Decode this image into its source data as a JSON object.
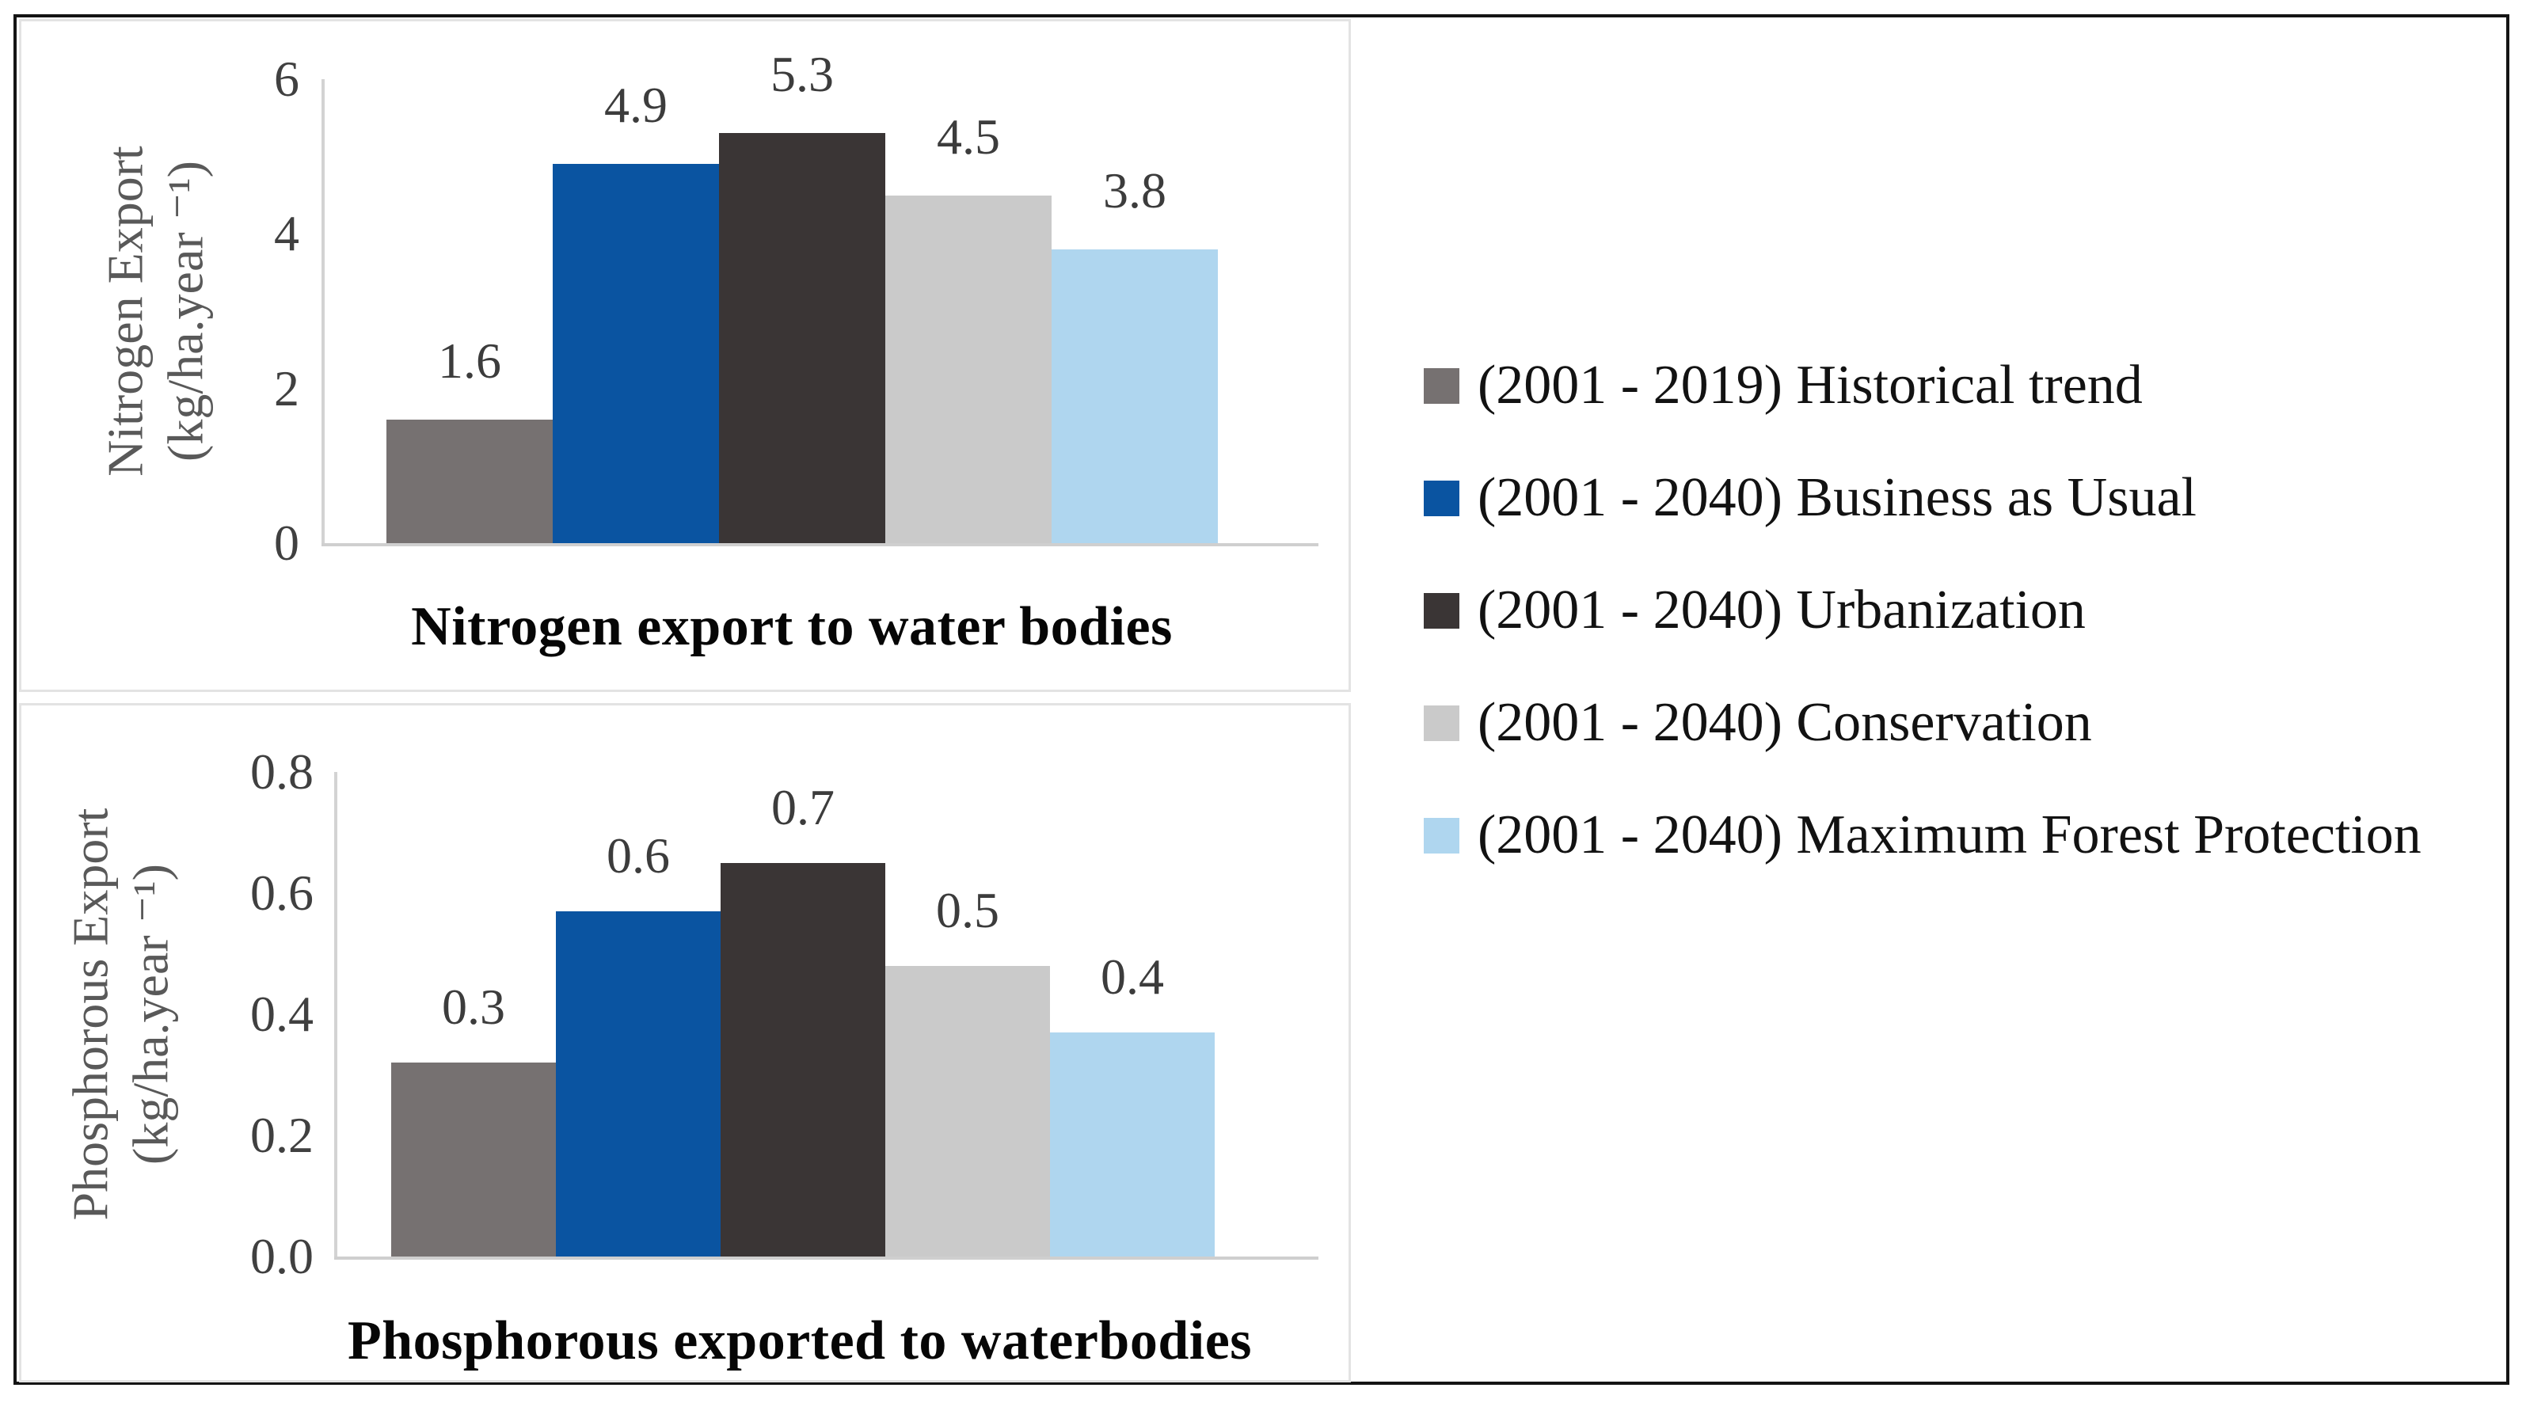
{
  "figure": {
    "background": "#ffffff",
    "border_color": "#141414",
    "panel_border_color": "#e3e3e3",
    "axis_line_color": "#d3d3d3",
    "tick_label_color": "#404040",
    "data_label_color": "#3c3c3c",
    "axis_title_color": "#595959",
    "chart_title_color": "#060606"
  },
  "legend": {
    "position": "right",
    "items": [
      {
        "label": "(2001 - 2019) Historical trend",
        "color": "#767171",
        "swatch": "square"
      },
      {
        "label": "(2001 - 2040) Business as Usual",
        "color": "#0a54a1",
        "swatch": "square"
      },
      {
        "label": "(2001 - 2040) Urbanization",
        "color": "#3a3535",
        "swatch": "square"
      },
      {
        "label": "(2001 - 2040) Conservation",
        "color": "#cacaca",
        "swatch": "square"
      },
      {
        "label": "(2001 - 2040) Maximum Forest Protection",
        "color": "#afd6ef",
        "swatch": "square"
      }
    ]
  },
  "chart_data": [
    {
      "type": "bar",
      "title": "Nitrogen export to water bodies",
      "title_position": "bottom",
      "ylabel_line1": "Nitrogen Export",
      "ylabel_line2": "(kg/ha.year ⁻¹)",
      "xlabel": "",
      "categories": [
        "(2001 - 2019) Historical trend",
        "(2001 - 2040) Business as Usual",
        "(2001 - 2040) Urbanization",
        "(2001 - 2040) Conservation",
        "(2001 - 2040) Maximum Forest Protection"
      ],
      "values": [
        1.6,
        4.9,
        5.3,
        4.5,
        3.8
      ],
      "bar_labels": [
        "1.6",
        "4.9",
        "5.3",
        "4.5",
        "3.8"
      ],
      "plotted_values": [
        1.6,
        4.9,
        5.3,
        4.5,
        3.8
      ],
      "colors": [
        "#767171",
        "#0a54a1",
        "#3a3535",
        "#cacaca",
        "#afd6ef"
      ],
      "ylim": [
        0,
        6
      ],
      "yticks": [
        {
          "value": 0,
          "label": "0"
        },
        {
          "value": 2,
          "label": "2"
        },
        {
          "value": 4,
          "label": "4"
        },
        {
          "value": 6,
          "label": "6"
        }
      ],
      "grid": false,
      "legend_shown_in_panel": false
    },
    {
      "type": "bar",
      "title": "Phosphorous exported to waterbodies",
      "title_position": "bottom",
      "ylabel_line1": "Phosphorous Export",
      "ylabel_line2": "(kg/ha.year ⁻¹)",
      "xlabel": "",
      "categories": [
        "(2001 - 2019) Historical trend",
        "(2001 - 2040) Business as Usual",
        "(2001 - 2040) Urbanization",
        "(2001 - 2040) Conservation",
        "(2001 - 2040) Maximum Forest Protection"
      ],
      "values": [
        0.3,
        0.6,
        0.7,
        0.5,
        0.4
      ],
      "bar_labels": [
        "0.3",
        "0.6",
        "0.7",
        "0.5",
        "0.4"
      ],
      "plotted_values": [
        0.32,
        0.57,
        0.65,
        0.48,
        0.37
      ],
      "colors": [
        "#767171",
        "#0a54a1",
        "#3a3535",
        "#cacaca",
        "#afd6ef"
      ],
      "ylim": [
        0,
        0.8
      ],
      "yticks": [
        {
          "value": 0.0,
          "label": "0.0"
        },
        {
          "value": 0.2,
          "label": "0.2"
        },
        {
          "value": 0.4,
          "label": "0.4"
        },
        {
          "value": 0.6,
          "label": "0.6"
        },
        {
          "value": 0.8,
          "label": "0.8"
        }
      ],
      "grid": false,
      "legend_shown_in_panel": false
    }
  ]
}
